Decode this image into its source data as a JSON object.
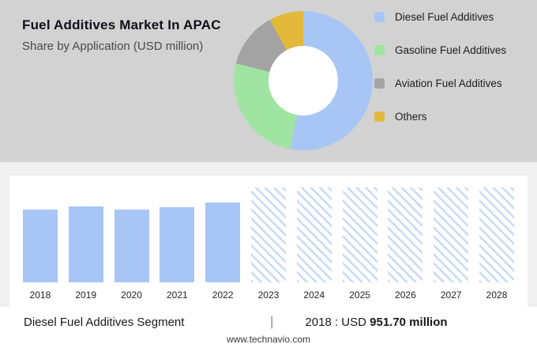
{
  "header": {
    "title": "Fuel Additives Market In APAC",
    "subtitle": "Share by Application (USD million)"
  },
  "chart_data": [
    {
      "type": "pie",
      "donut": true,
      "title": "Share by Application (USD million)",
      "legend_position": "right",
      "segments": [
        {
          "label": "Diesel Fuel Additives",
          "value": 53,
          "color": "#a7c6f5"
        },
        {
          "label": "Gasoline Fuel Additives",
          "value": 26,
          "color": "#9fe5a1"
        },
        {
          "label": "Aviation Fuel Additives",
          "value": 13,
          "color": "#a3a3a3"
        },
        {
          "label": "Others",
          "value": 8,
          "color": "#e2b93b"
        }
      ]
    },
    {
      "type": "bar",
      "categories": [
        "2018",
        "2019",
        "2020",
        "2021",
        "2022",
        "2023",
        "2024",
        "2025",
        "2026",
        "2027",
        "2028"
      ],
      "values": [
        951.7,
        990,
        950,
        980,
        1045,
        null,
        null,
        null,
        null,
        null,
        null
      ],
      "forecast": [
        false,
        false,
        false,
        false,
        false,
        true,
        true,
        true,
        true,
        true,
        true
      ],
      "ylim": [
        0,
        1240
      ],
      "xlabel": "",
      "ylabel": "",
      "grid": false,
      "bar_color": "#a7c6f5",
      "hatch_color": "#c8daf6",
      "annotation": "2018 : USD 951.70 million"
    }
  ],
  "caption": {
    "segment": "Diesel Fuel Additives Segment",
    "divider": "|",
    "prefix": "2018 : USD",
    "value": "951.70 million"
  },
  "footer": {
    "url": "www.technavio.com"
  }
}
